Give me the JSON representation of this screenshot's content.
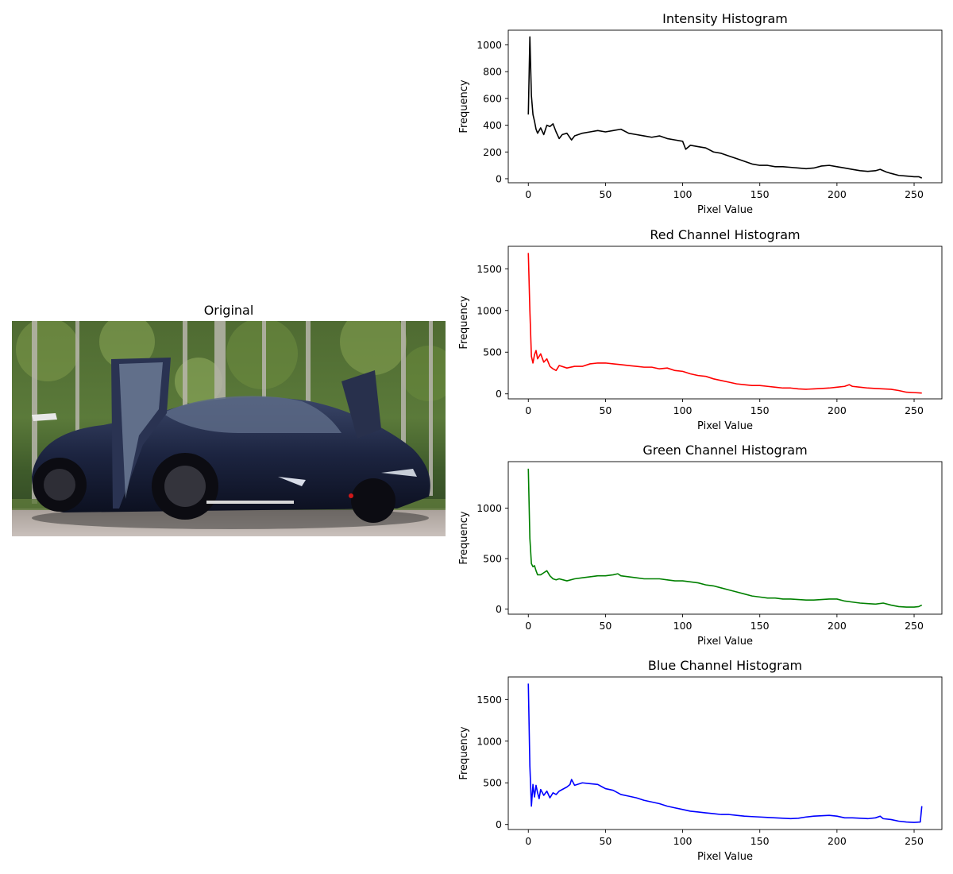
{
  "image_panel": {
    "title": "Original",
    "photo": "sports-car-photo"
  },
  "chart_data": [
    {
      "type": "line",
      "title": "Intensity Histogram",
      "xlabel": "Pixel Value",
      "ylabel": "Frequency",
      "xlim": [
        -13,
        268
      ],
      "ylim": [
        -30,
        1110
      ],
      "xticks": [
        0,
        50,
        100,
        150,
        200,
        250
      ],
      "yticks": [
        0,
        200,
        400,
        600,
        800,
        1000
      ],
      "grid": false,
      "series": [
        {
          "color": "#000000",
          "points": [
            [
              0,
              480
            ],
            [
              1,
              1060
            ],
            [
              2,
              620
            ],
            [
              3,
              480
            ],
            [
              4,
              430
            ],
            [
              5,
              370
            ],
            [
              6,
              340
            ],
            [
              8,
              380
            ],
            [
              10,
              330
            ],
            [
              12,
              400
            ],
            [
              14,
              390
            ],
            [
              16,
              410
            ],
            [
              18,
              350
            ],
            [
              20,
              300
            ],
            [
              22,
              330
            ],
            [
              25,
              340
            ],
            [
              28,
              290
            ],
            [
              30,
              320
            ],
            [
              35,
              340
            ],
            [
              40,
              350
            ],
            [
              45,
              360
            ],
            [
              50,
              350
            ],
            [
              55,
              360
            ],
            [
              60,
              370
            ],
            [
              65,
              340
            ],
            [
              70,
              330
            ],
            [
              75,
              320
            ],
            [
              80,
              310
            ],
            [
              85,
              320
            ],
            [
              90,
              300
            ],
            [
              95,
              290
            ],
            [
              100,
              280
            ],
            [
              102,
              220
            ],
            [
              105,
              250
            ],
            [
              110,
              240
            ],
            [
              115,
              230
            ],
            [
              120,
              200
            ],
            [
              125,
              190
            ],
            [
              130,
              170
            ],
            [
              135,
              150
            ],
            [
              140,
              130
            ],
            [
              145,
              110
            ],
            [
              150,
              100
            ],
            [
              155,
              100
            ],
            [
              160,
              90
            ],
            [
              165,
              90
            ],
            [
              170,
              85
            ],
            [
              175,
              80
            ],
            [
              180,
              75
            ],
            [
              185,
              80
            ],
            [
              190,
              95
            ],
            [
              195,
              100
            ],
            [
              200,
              90
            ],
            [
              205,
              80
            ],
            [
              210,
              70
            ],
            [
              215,
              60
            ],
            [
              220,
              55
            ],
            [
              225,
              60
            ],
            [
              228,
              70
            ],
            [
              232,
              50
            ],
            [
              235,
              40
            ],
            [
              240,
              25
            ],
            [
              245,
              20
            ],
            [
              250,
              15
            ],
            [
              253,
              15
            ],
            [
              255,
              5
            ]
          ]
        }
      ]
    },
    {
      "type": "line",
      "title": "Red Channel Histogram",
      "xlabel": "Pixel Value",
      "ylabel": "Frequency",
      "xlim": [
        -13,
        268
      ],
      "ylim": [
        -60,
        1770
      ],
      "xticks": [
        0,
        50,
        100,
        150,
        200,
        250
      ],
      "yticks": [
        0,
        500,
        1000,
        1500
      ],
      "grid": false,
      "series": [
        {
          "color": "#ff0000",
          "points": [
            [
              0,
              1690
            ],
            [
              1,
              1000
            ],
            [
              2,
              450
            ],
            [
              3,
              370
            ],
            [
              4,
              470
            ],
            [
              5,
              520
            ],
            [
              6,
              420
            ],
            [
              8,
              480
            ],
            [
              10,
              380
            ],
            [
              12,
              420
            ],
            [
              14,
              330
            ],
            [
              16,
              300
            ],
            [
              18,
              280
            ],
            [
              20,
              340
            ],
            [
              25,
              310
            ],
            [
              30,
              330
            ],
            [
              35,
              330
            ],
            [
              40,
              360
            ],
            [
              45,
              370
            ],
            [
              50,
              370
            ],
            [
              55,
              360
            ],
            [
              60,
              350
            ],
            [
              65,
              340
            ],
            [
              70,
              330
            ],
            [
              75,
              320
            ],
            [
              80,
              320
            ],
            [
              85,
              300
            ],
            [
              90,
              310
            ],
            [
              95,
              280
            ],
            [
              100,
              270
            ],
            [
              105,
              240
            ],
            [
              110,
              220
            ],
            [
              115,
              210
            ],
            [
              120,
              180
            ],
            [
              125,
              160
            ],
            [
              130,
              140
            ],
            [
              135,
              120
            ],
            [
              140,
              110
            ],
            [
              145,
              100
            ],
            [
              150,
              100
            ],
            [
              155,
              90
            ],
            [
              160,
              80
            ],
            [
              165,
              70
            ],
            [
              170,
              70
            ],
            [
              175,
              60
            ],
            [
              180,
              55
            ],
            [
              185,
              60
            ],
            [
              190,
              65
            ],
            [
              195,
              70
            ],
            [
              200,
              80
            ],
            [
              205,
              90
            ],
            [
              208,
              110
            ],
            [
              210,
              90
            ],
            [
              215,
              80
            ],
            [
              220,
              70
            ],
            [
              225,
              65
            ],
            [
              230,
              60
            ],
            [
              235,
              55
            ],
            [
              240,
              40
            ],
            [
              245,
              20
            ],
            [
              250,
              15
            ],
            [
              255,
              10
            ]
          ]
        }
      ]
    },
    {
      "type": "line",
      "title": "Green Channel Histogram",
      "xlabel": "Pixel Value",
      "ylabel": "Frequency",
      "xlim": [
        -13,
        268
      ],
      "ylim": [
        -50,
        1460
      ],
      "xticks": [
        0,
        50,
        100,
        150,
        200,
        250
      ],
      "yticks": [
        0,
        500,
        1000
      ],
      "grid": false,
      "series": [
        {
          "color": "#008000",
          "points": [
            [
              0,
              1390
            ],
            [
              1,
              700
            ],
            [
              2,
              450
            ],
            [
              3,
              420
            ],
            [
              4,
              430
            ],
            [
              5,
              380
            ],
            [
              6,
              340
            ],
            [
              8,
              340
            ],
            [
              10,
              360
            ],
            [
              12,
              380
            ],
            [
              14,
              330
            ],
            [
              16,
              300
            ],
            [
              18,
              290
            ],
            [
              20,
              300
            ],
            [
              25,
              280
            ],
            [
              30,
              300
            ],
            [
              35,
              310
            ],
            [
              40,
              320
            ],
            [
              45,
              330
            ],
            [
              50,
              330
            ],
            [
              55,
              340
            ],
            [
              58,
              350
            ],
            [
              60,
              330
            ],
            [
              65,
              320
            ],
            [
              70,
              310
            ],
            [
              75,
              300
            ],
            [
              80,
              300
            ],
            [
              85,
              300
            ],
            [
              90,
              290
            ],
            [
              95,
              280
            ],
            [
              100,
              280
            ],
            [
              105,
              270
            ],
            [
              110,
              260
            ],
            [
              115,
              240
            ],
            [
              120,
              230
            ],
            [
              125,
              210
            ],
            [
              130,
              190
            ],
            [
              135,
              170
            ],
            [
              140,
              150
            ],
            [
              145,
              130
            ],
            [
              150,
              120
            ],
            [
              155,
              110
            ],
            [
              160,
              110
            ],
            [
              165,
              100
            ],
            [
              170,
              100
            ],
            [
              175,
              95
            ],
            [
              180,
              90
            ],
            [
              185,
              90
            ],
            [
              190,
              95
            ],
            [
              195,
              100
            ],
            [
              200,
              100
            ],
            [
              205,
              80
            ],
            [
              210,
              70
            ],
            [
              215,
              60
            ],
            [
              220,
              55
            ],
            [
              225,
              50
            ],
            [
              230,
              60
            ],
            [
              235,
              40
            ],
            [
              240,
              25
            ],
            [
              245,
              20
            ],
            [
              250,
              20
            ],
            [
              253,
              25
            ],
            [
              255,
              40
            ]
          ]
        }
      ]
    },
    {
      "type": "line",
      "title": "Blue Channel Histogram",
      "xlabel": "Pixel Value",
      "ylabel": "Frequency",
      "xlim": [
        -13,
        268
      ],
      "ylim": [
        -60,
        1770
      ],
      "xticks": [
        0,
        50,
        100,
        150,
        200,
        250
      ],
      "yticks": [
        0,
        500,
        1000,
        1500
      ],
      "grid": false,
      "series": [
        {
          "color": "#0000ff",
          "points": [
            [
              0,
              1690
            ],
            [
              1,
              700
            ],
            [
              2,
              220
            ],
            [
              3,
              480
            ],
            [
              4,
              330
            ],
            [
              5,
              470
            ],
            [
              6,
              380
            ],
            [
              7,
              310
            ],
            [
              8,
              420
            ],
            [
              10,
              350
            ],
            [
              12,
              400
            ],
            [
              14,
              320
            ],
            [
              16,
              380
            ],
            [
              18,
              360
            ],
            [
              20,
              400
            ],
            [
              22,
              420
            ],
            [
              25,
              450
            ],
            [
              27,
              480
            ],
            [
              28,
              540
            ],
            [
              30,
              470
            ],
            [
              35,
              500
            ],
            [
              40,
              490
            ],
            [
              45,
              480
            ],
            [
              48,
              450
            ],
            [
              50,
              430
            ],
            [
              55,
              410
            ],
            [
              60,
              360
            ],
            [
              65,
              340
            ],
            [
              70,
              320
            ],
            [
              75,
              290
            ],
            [
              80,
              270
            ],
            [
              85,
              250
            ],
            [
              90,
              220
            ],
            [
              95,
              200
            ],
            [
              100,
              180
            ],
            [
              105,
              160
            ],
            [
              110,
              150
            ],
            [
              115,
              140
            ],
            [
              120,
              130
            ],
            [
              125,
              120
            ],
            [
              130,
              120
            ],
            [
              135,
              110
            ],
            [
              140,
              100
            ],
            [
              145,
              95
            ],
            [
              150,
              90
            ],
            [
              155,
              85
            ],
            [
              160,
              80
            ],
            [
              165,
              75
            ],
            [
              170,
              70
            ],
            [
              175,
              75
            ],
            [
              180,
              90
            ],
            [
              185,
              100
            ],
            [
              190,
              105
            ],
            [
              195,
              110
            ],
            [
              200,
              100
            ],
            [
              205,
              80
            ],
            [
              210,
              80
            ],
            [
              215,
              75
            ],
            [
              220,
              70
            ],
            [
              225,
              80
            ],
            [
              228,
              100
            ],
            [
              230,
              70
            ],
            [
              235,
              60
            ],
            [
              240,
              40
            ],
            [
              245,
              30
            ],
            [
              250,
              25
            ],
            [
              254,
              30
            ],
            [
              255,
              220
            ]
          ]
        }
      ]
    }
  ]
}
